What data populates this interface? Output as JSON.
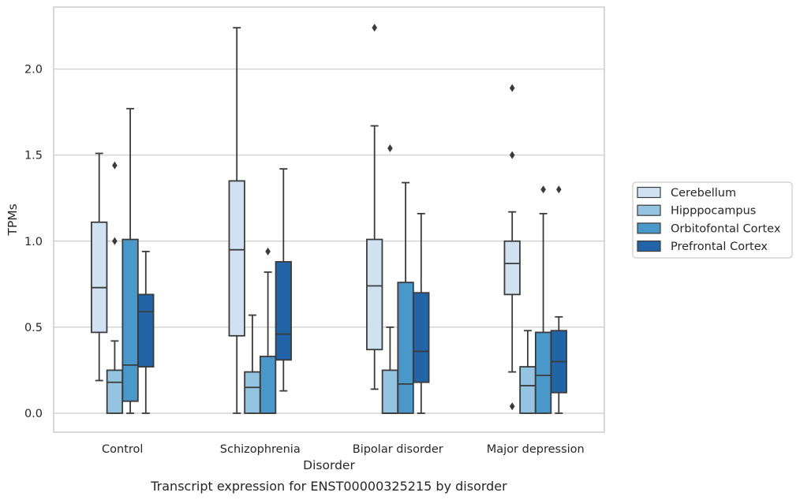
{
  "chart_data": {
    "type": "boxplot",
    "caption": "Transcript expression for ENST00000325215 by disorder",
    "xlabel": "Disorder",
    "ylabel": "TPMs",
    "ylim": [
      -0.11,
      2.36
    ],
    "yticks": [
      0.0,
      0.5,
      1.0,
      1.5,
      2.0
    ],
    "ytick_labels": [
      "0.0",
      "0.5",
      "1.0",
      "1.5",
      "2.0"
    ],
    "grid": "horizontal",
    "legend_position": "right",
    "categories": [
      "Control",
      "Schizophrenia",
      "Bipolar disorder",
      "Major depression"
    ],
    "series": [
      {
        "name": "Cerebellum",
        "color": "#d0e1f2",
        "boxes": [
          {
            "whislo": 0.19,
            "q1": 0.47,
            "med": 0.73,
            "q3": 1.11,
            "whishi": 1.51,
            "fliers": []
          },
          {
            "whislo": 0.0,
            "q1": 0.45,
            "med": 0.95,
            "q3": 1.35,
            "whishi": 2.24,
            "fliers": []
          },
          {
            "whislo": 0.14,
            "q1": 0.37,
            "med": 0.74,
            "q3": 1.01,
            "whishi": 1.67,
            "fliers": [
              2.24
            ]
          },
          {
            "whislo": 0.24,
            "q1": 0.69,
            "med": 0.87,
            "q3": 1.0,
            "whishi": 1.17,
            "fliers": [
              1.89,
              1.5,
              0.04
            ]
          }
        ]
      },
      {
        "name": "Hipppocampus",
        "color": "#94c4df",
        "boxes": [
          {
            "whislo": 0.0,
            "q1": 0.0,
            "med": 0.18,
            "q3": 0.25,
            "whishi": 0.42,
            "fliers": [
              1.44,
              1.0
            ]
          },
          {
            "whislo": 0.0,
            "q1": 0.0,
            "med": 0.15,
            "q3": 0.24,
            "whishi": 0.57,
            "fliers": []
          },
          {
            "whislo": 0.0,
            "q1": 0.0,
            "med": 0.0,
            "q3": 0.25,
            "whishi": 0.5,
            "fliers": [
              1.54
            ]
          },
          {
            "whislo": 0.0,
            "q1": 0.0,
            "med": 0.16,
            "q3": 0.27,
            "whishi": 0.48,
            "fliers": []
          }
        ]
      },
      {
        "name": "Orbitofontal Cortex",
        "color": "#4a98c9",
        "boxes": [
          {
            "whislo": 0.0,
            "q1": 0.07,
            "med": 0.28,
            "q3": 1.01,
            "whishi": 1.77,
            "fliers": []
          },
          {
            "whislo": 0.0,
            "q1": 0.0,
            "med": 0.0,
            "q3": 0.33,
            "whishi": 0.82,
            "fliers": [
              0.94
            ]
          },
          {
            "whislo": 0.0,
            "q1": 0.0,
            "med": 0.17,
            "q3": 0.76,
            "whishi": 1.34,
            "fliers": []
          },
          {
            "whislo": 0.0,
            "q1": 0.0,
            "med": 0.22,
            "q3": 0.47,
            "whishi": 1.16,
            "fliers": [
              1.3
            ]
          }
        ]
      },
      {
        "name": "Prefrontal Cortex",
        "color": "#2264a8",
        "boxes": [
          {
            "whislo": 0.0,
            "q1": 0.27,
            "med": 0.59,
            "q3": 0.69,
            "whishi": 0.94,
            "fliers": []
          },
          {
            "whislo": 0.13,
            "q1": 0.31,
            "med": 0.46,
            "q3": 0.88,
            "whishi": 1.42,
            "fliers": []
          },
          {
            "whislo": 0.0,
            "q1": 0.18,
            "med": 0.36,
            "q3": 0.7,
            "whishi": 1.16,
            "fliers": []
          },
          {
            "whislo": 0.0,
            "q1": 0.12,
            "med": 0.3,
            "q3": 0.48,
            "whishi": 0.56,
            "fliers": [
              1.3
            ]
          }
        ]
      }
    ]
  }
}
